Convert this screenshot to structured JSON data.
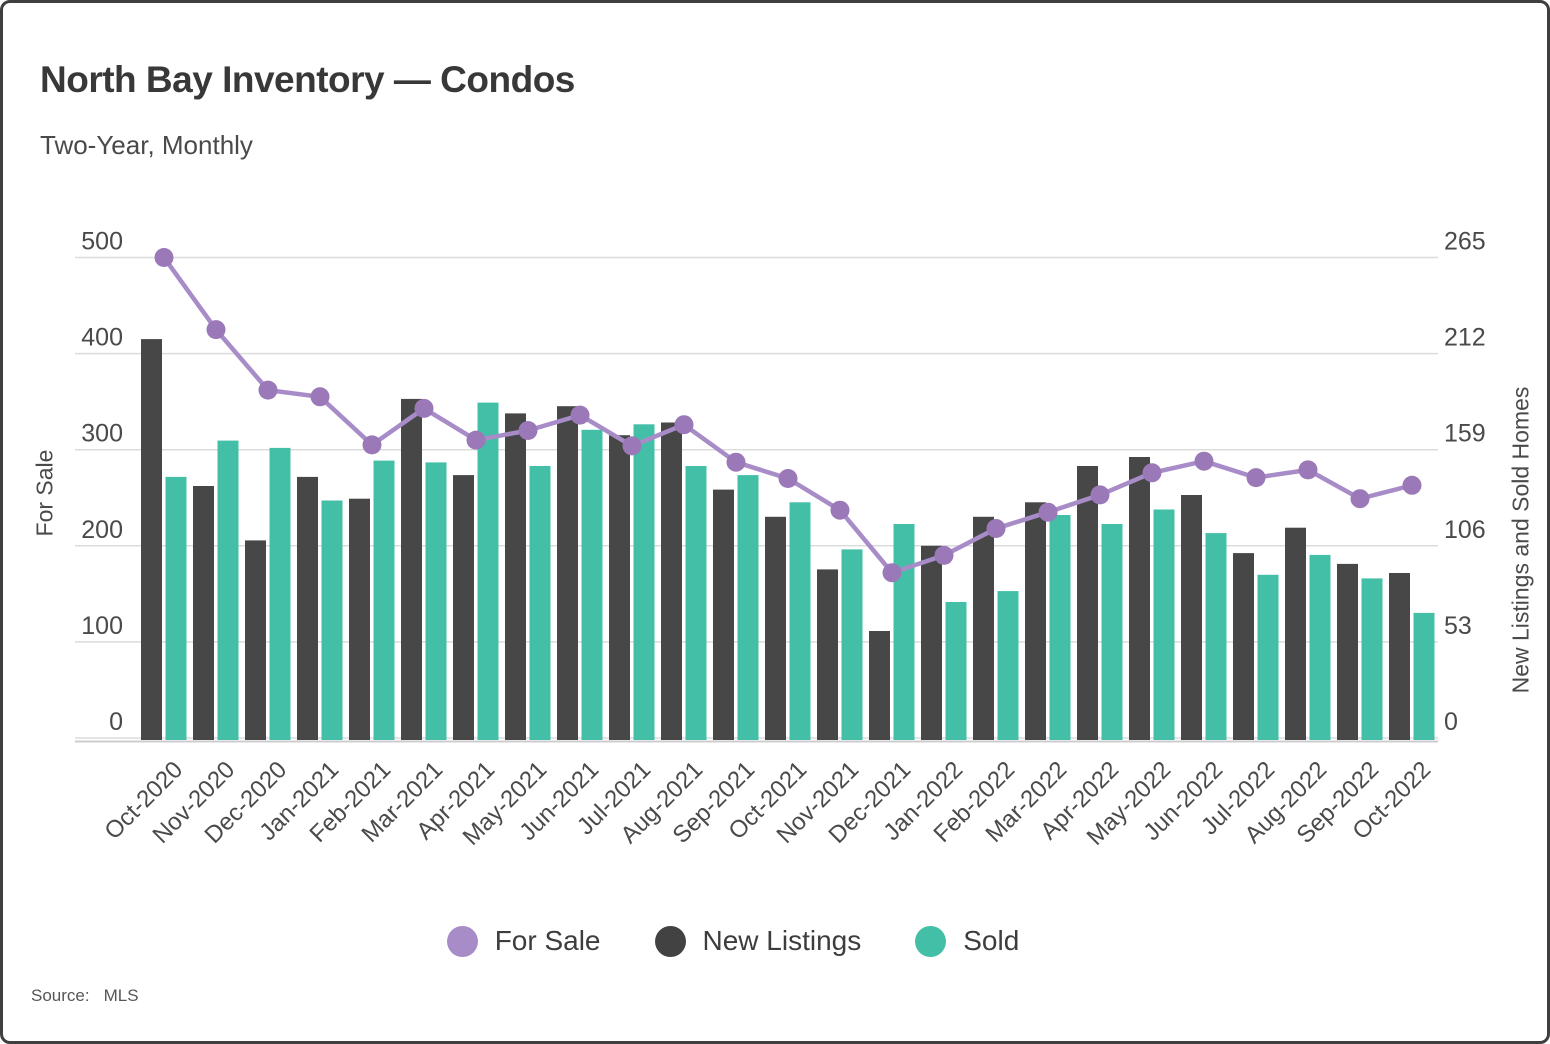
{
  "header": {
    "title": "North Bay Inventory — Condos",
    "subtitle": "Two-Year, Monthly"
  },
  "chart_data": {
    "type": "combo",
    "title": "North Bay Inventory — Condos",
    "subtitle": "Two-Year, Monthly",
    "categories": [
      "Oct-2020",
      "Nov-2020",
      "Dec-2020",
      "Jan-2021",
      "Feb-2021",
      "Mar-2021",
      "Apr-2021",
      "May-2021",
      "Jun-2021",
      "Jul-2021",
      "Aug-2021",
      "Sep-2021",
      "Oct-2021",
      "Nov-2021",
      "Dec-2021",
      "Jan-2022",
      "Feb-2022",
      "Mar-2022",
      "Apr-2022",
      "May-2022",
      "Jun-2022",
      "Jul-2022",
      "Aug-2022",
      "Sep-2022",
      "Oct-2022"
    ],
    "series": [
      {
        "name": "For Sale",
        "type": "line",
        "axis": "left",
        "color": "#a78cc8",
        "marker_color": "#9b79b8",
        "values": [
          500,
          425,
          362,
          355,
          305,
          343,
          310,
          320,
          336,
          304,
          326,
          287,
          270,
          237,
          172,
          190,
          218,
          235,
          253,
          276,
          288,
          271,
          279,
          249,
          263
        ]
      },
      {
        "name": "New Listings",
        "type": "bar",
        "axis": "right",
        "color": "#474747",
        "values": [
          220,
          139,
          109,
          144,
          132,
          187,
          145,
          179,
          183,
          167,
          174,
          137,
          122,
          93,
          59,
          106,
          122,
          130,
          150,
          155,
          134,
          102,
          116,
          96,
          91
        ]
      },
      {
        "name": "Sold",
        "type": "bar",
        "axis": "right",
        "color": "#43bfa7",
        "values": [
          144,
          164,
          160,
          131,
          153,
          152,
          185,
          150,
          170,
          173,
          150,
          145,
          130,
          104,
          118,
          75,
          81,
          123,
          118,
          126,
          113,
          90,
          101,
          88,
          69
        ]
      }
    ],
    "axes": {
      "left": {
        "label": "For Sale",
        "min": 0,
        "max": 500,
        "ticks": [
          0,
          100,
          200,
          300,
          400,
          500
        ]
      },
      "right": {
        "label": "New Listings and Sold Homes",
        "min": 0,
        "max": 265,
        "ticks": [
          0,
          53,
          106,
          159,
          212,
          265
        ]
      }
    },
    "grid": true,
    "legend_position": "bottom",
    "x_tick_rotation": -45
  },
  "legend": {
    "items": [
      {
        "label": "For Sale",
        "color": "#a78cc8"
      },
      {
        "label": "New Listings",
        "color": "#424242"
      },
      {
        "label": "Sold",
        "color": "#43bfa7"
      }
    ]
  },
  "footer": {
    "source_label": "Source:",
    "source_value": "MLS"
  }
}
